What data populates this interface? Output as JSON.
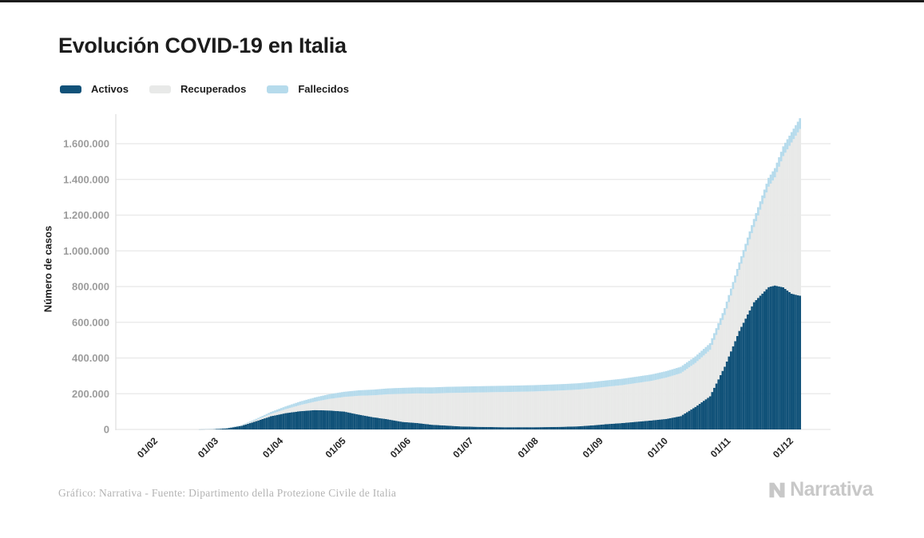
{
  "header": {
    "title": "Evolución COVID-19 en Italia"
  },
  "footer": {
    "caption": "Gráfico: Narrativa - Fuente: Dipartimento della Protezione Civile de Italia",
    "brand": "Narrativa"
  },
  "colors": {
    "activos": "#115279",
    "recuperados": "#e8e9e8",
    "fallecidos": "#b6dbec",
    "gridline": "#e8e8e8",
    "axis_line": "#e0e0e0",
    "y_tick_text": "#9c9c9c",
    "x_tick_text": "#242424"
  },
  "chart_data": {
    "type": "area",
    "stacked": true,
    "title": "Evolución COVID-19 en Italia",
    "xlabel": "",
    "ylabel": "Número de casos",
    "ylim": [
      0,
      1780000
    ],
    "grid": "horizontal",
    "legend_position": "top-left",
    "x_unit": "daily bars, Feb 24 2020 – Dec 7 2020; ticks at first of each month (dd/mm)",
    "series": [
      {
        "name": "Activos",
        "color": "#115279",
        "key": "a"
      },
      {
        "name": "Recuperados",
        "color": "#e8e9e8",
        "key": "r"
      },
      {
        "name": "Fallecidos",
        "color": "#b6dbec",
        "key": "f"
      }
    ],
    "y_ticks": [
      {
        "label": "0",
        "value": 0
      },
      {
        "label": "200.000",
        "value": 200000
      },
      {
        "label": "400.000",
        "value": 400000
      },
      {
        "label": "600.000",
        "value": 600000
      },
      {
        "label": "800.000",
        "value": 800000
      },
      {
        "label": "1.000.000",
        "value": 1000000
      },
      {
        "label": "1.200.000",
        "value": 1200000
      },
      {
        "label": "1.400.000",
        "value": 1400000
      },
      {
        "label": "1.600.000",
        "value": 1600000
      }
    ],
    "x_ticks": [
      {
        "label": "01/02",
        "day": 0
      },
      {
        "label": "01/03",
        "day": 29
      },
      {
        "label": "01/04",
        "day": 60
      },
      {
        "label": "01/05",
        "day": 90
      },
      {
        "label": "01/06",
        "day": 121
      },
      {
        "label": "01/07",
        "day": 151
      },
      {
        "label": "01/08",
        "day": 182
      },
      {
        "label": "01/09",
        "day": 213
      },
      {
        "label": "01/10",
        "day": 244
      },
      {
        "label": "01/11",
        "day": 274
      },
      {
        "label": "01/12",
        "day": 304
      }
    ],
    "samples": [
      {
        "date": "24/02",
        "day": 23,
        "a": 221,
        "r": 1,
        "f": 7
      },
      {
        "date": "01/03",
        "day": 29,
        "a": 1577,
        "r": 83,
        "f": 34
      },
      {
        "date": "08/03",
        "day": 36,
        "a": 6387,
        "r": 622,
        "f": 366
      },
      {
        "date": "15/03",
        "day": 43,
        "a": 20603,
        "r": 2335,
        "f": 1809
      },
      {
        "date": "22/03",
        "day": 50,
        "a": 46638,
        "r": 7024,
        "f": 5476
      },
      {
        "date": "29/03",
        "day": 57,
        "a": 73880,
        "r": 13030,
        "f": 10779
      },
      {
        "date": "05/04",
        "day": 64,
        "a": 91246,
        "r": 21815,
        "f": 15887
      },
      {
        "date": "12/04",
        "day": 71,
        "a": 102253,
        "r": 34211,
        "f": 19899
      },
      {
        "date": "19/04",
        "day": 78,
        "a": 108257,
        "r": 47055,
        "f": 23660
      },
      {
        "date": "26/04",
        "day": 85,
        "a": 106103,
        "r": 64928,
        "f": 26644
      },
      {
        "date": "03/05",
        "day": 92,
        "a": 100179,
        "r": 81654,
        "f": 28884
      },
      {
        "date": "10/05",
        "day": 99,
        "a": 83324,
        "r": 105186,
        "f": 30560
      },
      {
        "date": "17/05",
        "day": 106,
        "a": 68351,
        "r": 122810,
        "f": 31908
      },
      {
        "date": "24/05",
        "day": 113,
        "a": 56594,
        "r": 140479,
        "f": 32735
      },
      {
        "date": "31/05",
        "day": 120,
        "a": 42075,
        "r": 157507,
        "f": 33415
      },
      {
        "date": "07/06",
        "day": 127,
        "a": 35877,
        "r": 165837,
        "f": 33964
      },
      {
        "date": "14/06",
        "day": 134,
        "a": 26274,
        "r": 174865,
        "f": 34301
      },
      {
        "date": "21/06",
        "day": 141,
        "a": 21543,
        "r": 182453,
        "f": 34610
      },
      {
        "date": "28/06",
        "day": 148,
        "a": 16836,
        "r": 188584,
        "f": 34716
      },
      {
        "date": "05/07",
        "day": 155,
        "a": 14709,
        "r": 192108,
        "f": 34861
      },
      {
        "date": "12/07",
        "day": 162,
        "a": 13428,
        "r": 194928,
        "f": 34954
      },
      {
        "date": "19/07",
        "day": 169,
        "a": 12404,
        "r": 197162,
        "f": 35045
      },
      {
        "date": "26/07",
        "day": 176,
        "a": 12565,
        "r": 198593,
        "f": 35107
      },
      {
        "date": "02/08",
        "day": 183,
        "a": 12474,
        "r": 200460,
        "f": 35166
      },
      {
        "date": "09/08",
        "day": 190,
        "a": 13368,
        "r": 202461,
        "f": 35203
      },
      {
        "date": "16/08",
        "day": 197,
        "a": 14867,
        "r": 203968,
        "f": 35400
      },
      {
        "date": "23/08",
        "day": 204,
        "a": 17503,
        "r": 205662,
        "f": 35430
      },
      {
        "date": "30/08",
        "day": 211,
        "a": 23035,
        "r": 207653,
        "f": 35473
      },
      {
        "date": "06/09",
        "day": 218,
        "a": 30099,
        "r": 209610,
        "f": 35541
      },
      {
        "date": "13/09",
        "day": 225,
        "a": 35708,
        "r": 212432,
        "f": 35624
      },
      {
        "date": "20/09",
        "day": 232,
        "a": 43161,
        "r": 216807,
        "f": 35707
      },
      {
        "date": "27/09",
        "day": 239,
        "a": 50323,
        "r": 221762,
        "f": 35851
      },
      {
        "date": "04/10",
        "day": 246,
        "a": 58903,
        "r": 231217,
        "f": 36002
      },
      {
        "date": "11/10",
        "day": 253,
        "a": 74829,
        "r": 239709,
        "f": 36205
      },
      {
        "date": "18/10",
        "day": 260,
        "a": 126237,
        "r": 245964,
        "f": 36705
      },
      {
        "date": "25/10",
        "day": 267,
        "a": 186002,
        "r": 259456,
        "f": 37338
      },
      {
        "date": "01/11",
        "day": 274,
        "a": 351386,
        "r": 289426,
        "f": 38618
      },
      {
        "date": "08/11",
        "day": 281,
        "a": 551589,
        "r": 342121,
        "f": 41394
      },
      {
        "date": "15/11",
        "day": 288,
        "a": 712490,
        "r": 420810,
        "f": 45229
      },
      {
        "date": "22/11",
        "day": 295,
        "a": 796849,
        "r": 562196,
        "f": 49823
      },
      {
        "date": "25/11",
        "day": 298,
        "a": 805947,
        "r": 605330,
        "f": 52028
      },
      {
        "date": "29/11",
        "day": 302,
        "a": 795771,
        "r": 734503,
        "f": 54904
      },
      {
        "date": "03/12",
        "day": 306,
        "a": 759982,
        "r": 846809,
        "f": 58038
      },
      {
        "date": "07/12",
        "day": 310,
        "a": 748819,
        "r": 933132,
        "f": 60606
      }
    ]
  }
}
